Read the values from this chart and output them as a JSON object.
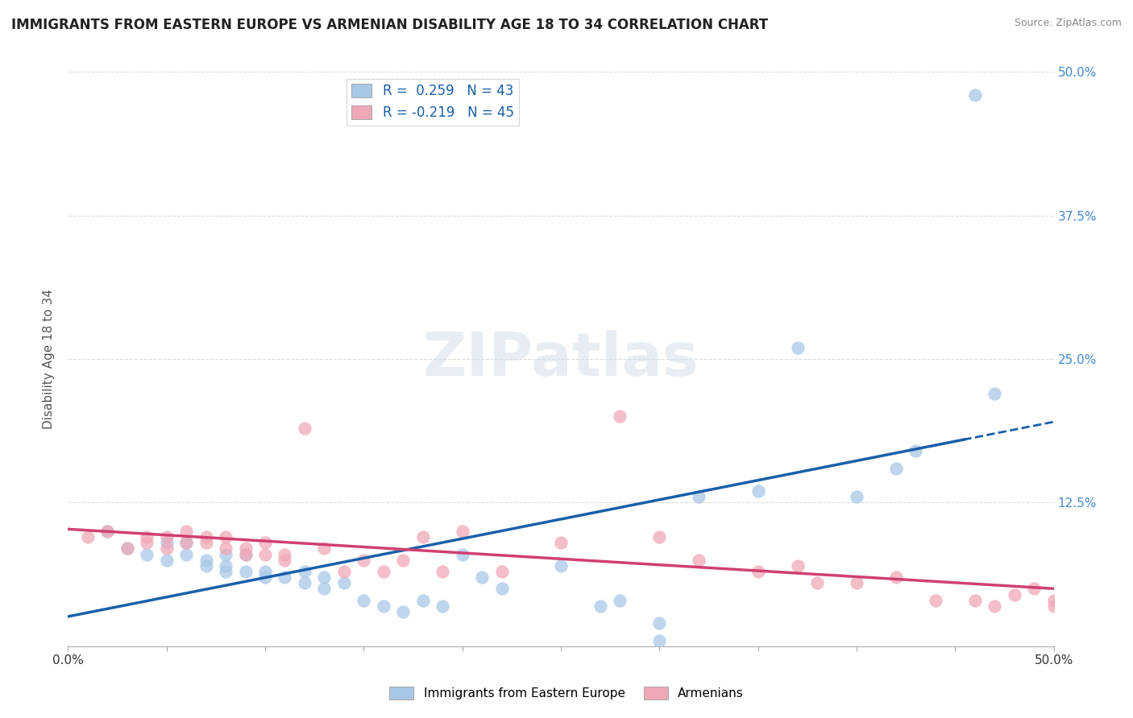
{
  "title": "IMMIGRANTS FROM EASTERN EUROPE VS ARMENIAN DISABILITY AGE 18 TO 34 CORRELATION CHART",
  "source": "Source: ZipAtlas.com",
  "ylabel": "Disability Age 18 to 34",
  "xlim": [
    0.0,
    0.5
  ],
  "ylim": [
    0.0,
    0.5
  ],
  "blue_R": 0.259,
  "blue_N": 43,
  "pink_R": -0.219,
  "pink_N": 45,
  "blue_color": "#a8c8e8",
  "pink_color": "#f0a8b8",
  "blue_line_color": "#1a5faa",
  "pink_line_color": "#d04070",
  "grid_color": "#dddddd",
  "title_color": "#222222",
  "axis_label_color": "#4488cc",
  "blue_points_x": [
    0.02,
    0.03,
    0.04,
    0.05,
    0.05,
    0.06,
    0.06,
    0.07,
    0.07,
    0.08,
    0.08,
    0.08,
    0.09,
    0.09,
    0.1,
    0.1,
    0.11,
    0.12,
    0.12,
    0.13,
    0.13,
    0.14,
    0.15,
    0.16,
    0.17,
    0.18,
    0.19,
    0.2,
    0.21,
    0.22,
    0.25,
    0.27,
    0.28,
    0.3,
    0.3,
    0.32,
    0.35,
    0.37,
    0.4,
    0.42,
    0.43,
    0.46,
    0.47
  ],
  "blue_points_y": [
    0.1,
    0.085,
    0.08,
    0.075,
    0.09,
    0.08,
    0.09,
    0.07,
    0.075,
    0.065,
    0.07,
    0.08,
    0.065,
    0.08,
    0.06,
    0.065,
    0.06,
    0.055,
    0.065,
    0.05,
    0.06,
    0.055,
    0.04,
    0.035,
    0.03,
    0.04,
    0.035,
    0.08,
    0.06,
    0.05,
    0.07,
    0.035,
    0.04,
    0.02,
    0.005,
    0.13,
    0.135,
    0.26,
    0.13,
    0.155,
    0.17,
    0.48,
    0.22
  ],
  "pink_points_x": [
    0.01,
    0.02,
    0.03,
    0.04,
    0.04,
    0.05,
    0.05,
    0.06,
    0.06,
    0.07,
    0.07,
    0.08,
    0.08,
    0.09,
    0.09,
    0.1,
    0.1,
    0.11,
    0.11,
    0.12,
    0.13,
    0.14,
    0.15,
    0.16,
    0.17,
    0.18,
    0.19,
    0.2,
    0.22,
    0.25,
    0.28,
    0.3,
    0.32,
    0.35,
    0.37,
    0.38,
    0.4,
    0.42,
    0.44,
    0.46,
    0.47,
    0.48,
    0.49,
    0.5,
    0.5
  ],
  "pink_points_y": [
    0.095,
    0.1,
    0.085,
    0.09,
    0.095,
    0.095,
    0.085,
    0.1,
    0.09,
    0.09,
    0.095,
    0.085,
    0.095,
    0.08,
    0.085,
    0.08,
    0.09,
    0.075,
    0.08,
    0.19,
    0.085,
    0.065,
    0.075,
    0.065,
    0.075,
    0.095,
    0.065,
    0.1,
    0.065,
    0.09,
    0.2,
    0.095,
    0.075,
    0.065,
    0.07,
    0.055,
    0.055,
    0.06,
    0.04,
    0.04,
    0.035,
    0.045,
    0.05,
    0.035,
    0.04
  ]
}
